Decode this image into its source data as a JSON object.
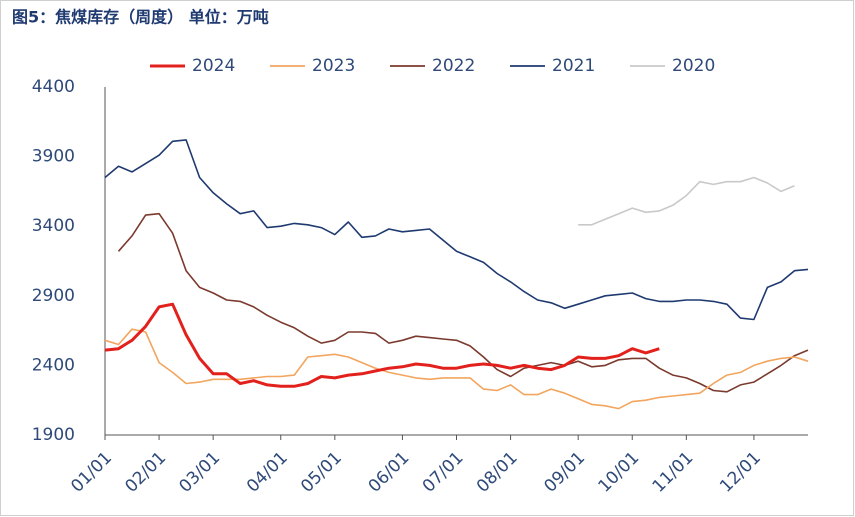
{
  "chart_data": {
    "type": "line",
    "title": "图5：焦煤库存（周度） 单位：万吨",
    "categories": [
      "01/01",
      null,
      null,
      null,
      "02/01",
      null,
      null,
      null,
      "03/01",
      null,
      null,
      null,
      null,
      "04/01",
      null,
      null,
      null,
      "05/01",
      null,
      null,
      null,
      null,
      "06/01",
      null,
      null,
      null,
      "07/01",
      null,
      null,
      null,
      "08/01",
      null,
      null,
      null,
      null,
      "09/01",
      null,
      null,
      null,
      "10/01",
      null,
      null,
      null,
      "11/01",
      null,
      null,
      null,
      null,
      "12/01",
      null,
      null,
      null,
      null
    ],
    "ylim": [
      1900,
      4400
    ],
    "yticks": [
      1900,
      2400,
      2900,
      3400,
      3900,
      4400
    ],
    "grid": false,
    "legend": "top",
    "series": [
      {
        "name": "2024",
        "color": "#e3211c",
        "values": [
          2510,
          2520,
          2580,
          2680,
          2820,
          2840,
          2620,
          2450,
          2340,
          2340,
          2270,
          2290,
          2260,
          2250,
          2250,
          2270,
          2320,
          2310,
          2330,
          2340,
          2360,
          2380,
          2390,
          2410,
          2400,
          2380,
          2380,
          2400,
          2410,
          2400,
          2380,
          2400,
          2380,
          2370,
          2400,
          2460,
          2450,
          2450,
          2470,
          2520,
          2490,
          2520,
          null,
          null,
          null,
          null,
          null,
          null,
          null,
          null,
          null,
          null,
          null
        ]
      },
      {
        "name": "2023",
        "color": "#f2a55e",
        "values": [
          2580,
          2550,
          2660,
          2640,
          2420,
          2350,
          2270,
          2280,
          2300,
          2300,
          2300,
          2310,
          2320,
          2320,
          2330,
          2460,
          2470,
          2480,
          2460,
          2420,
          2380,
          2350,
          2330,
          2310,
          2300,
          2310,
          2310,
          2310,
          2230,
          2220,
          2260,
          2190,
          2190,
          2230,
          2200,
          2160,
          2120,
          2110,
          2090,
          2140,
          2150,
          2170,
          2180,
          2190,
          2200,
          2270,
          2330,
          2350,
          2400,
          2430,
          2450,
          2460,
          2430
        ]
      },
      {
        "name": "2022",
        "color": "#7b3a2e",
        "values": [
          null,
          3220,
          3330,
          3480,
          3490,
          3350,
          3080,
          2960,
          2920,
          2870,
          2860,
          2820,
          2760,
          2710,
          2670,
          2610,
          2560,
          2580,
          2640,
          2640,
          2630,
          2560,
          2580,
          2610,
          2600,
          2590,
          2580,
          2540,
          2460,
          2370,
          2320,
          2380,
          2400,
          2420,
          2400,
          2430,
          2390,
          2400,
          2440,
          2450,
          2450,
          2380,
          2330,
          2310,
          2270,
          2220,
          2210,
          2260,
          2280,
          2340,
          2400,
          2470,
          2510
        ]
      },
      {
        "name": "2021",
        "color": "#1f3a70",
        "values": [
          3750,
          3830,
          3790,
          3850,
          3910,
          4010,
          4020,
          3750,
          3640,
          3560,
          3490,
          3510,
          3390,
          3400,
          3420,
          3410,
          3390,
          3340,
          3430,
          3320,
          3330,
          3380,
          3360,
          3370,
          3380,
          3300,
          3220,
          3180,
          3140,
          3060,
          3000,
          2930,
          2870,
          2850,
          2810,
          2840,
          2870,
          2900,
          2910,
          2920,
          2880,
          2860,
          2860,
          2870,
          2870,
          2860,
          2840,
          2740,
          2730,
          2960,
          3000,
          3080,
          3090
        ]
      },
      {
        "name": "2020",
        "color": "#c9c9c9",
        "values": [
          null,
          null,
          null,
          null,
          null,
          null,
          null,
          null,
          null,
          null,
          null,
          null,
          null,
          null,
          null,
          null,
          null,
          null,
          null,
          null,
          null,
          null,
          null,
          null,
          null,
          null,
          null,
          null,
          null,
          null,
          null,
          null,
          null,
          null,
          null,
          3410,
          3410,
          3450,
          3490,
          3530,
          3500,
          3510,
          3550,
          3620,
          3720,
          3700,
          3720,
          3720,
          3750,
          3710,
          3650,
          3690,
          null
        ]
      }
    ]
  }
}
